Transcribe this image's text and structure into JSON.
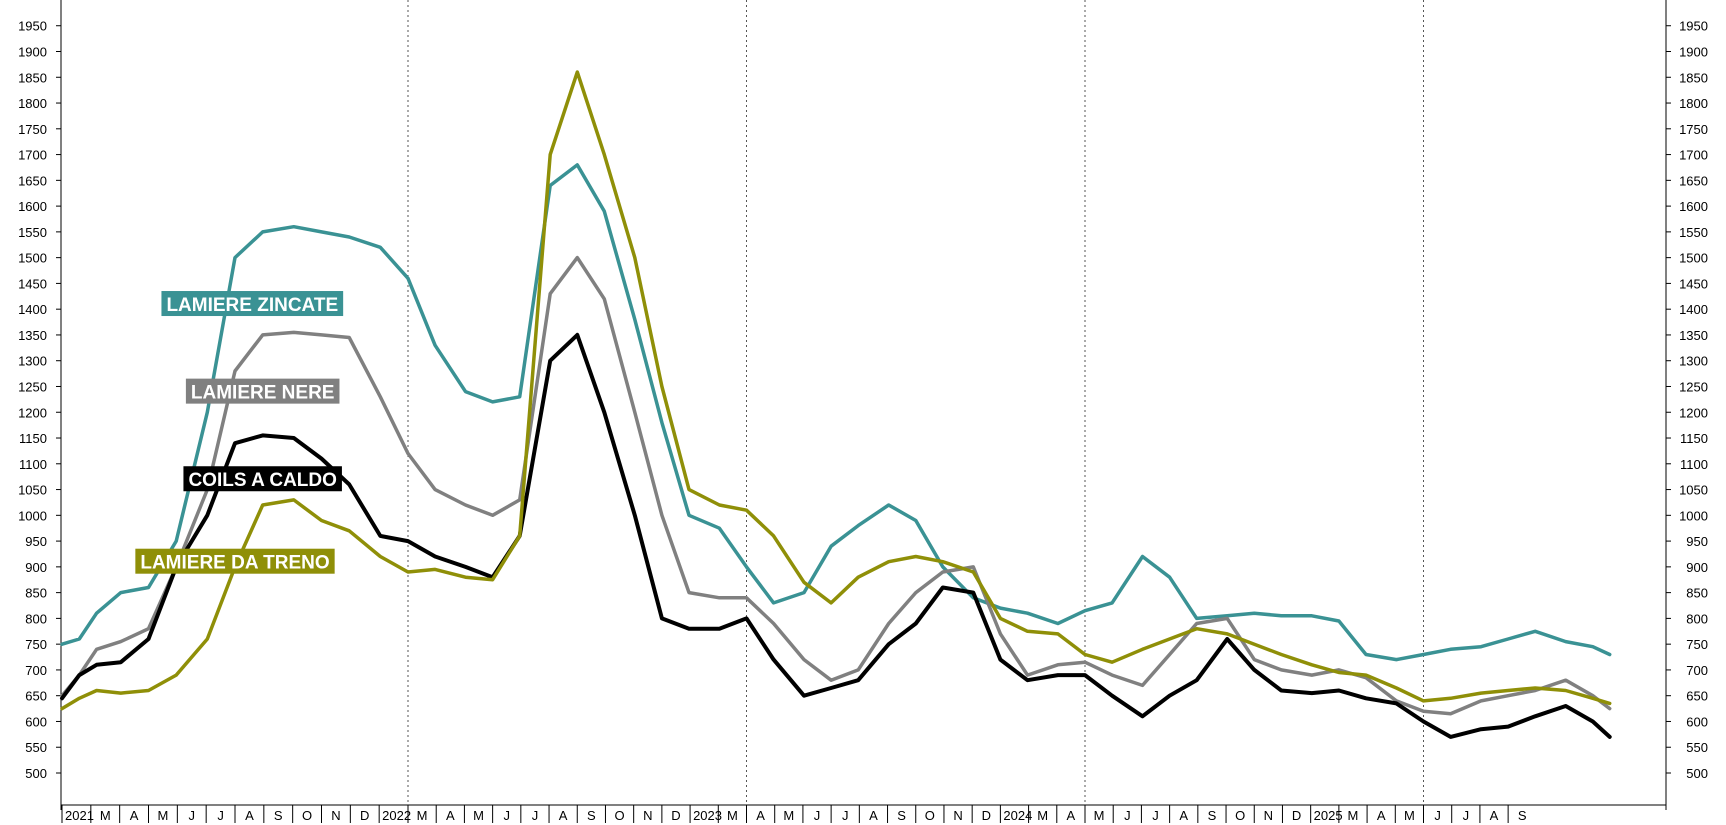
{
  "chart_data": {
    "type": "line",
    "ylim": [
      450,
      1980
    ],
    "yticks": [
      500,
      550,
      600,
      650,
      700,
      750,
      800,
      850,
      900,
      950,
      1000,
      1050,
      1100,
      1150,
      1200,
      1250,
      1300,
      1350,
      1400,
      1450,
      1500,
      1550,
      1600,
      1650,
      1700,
      1750,
      1800,
      1850,
      1900,
      1950
    ],
    "ytick_labels": [
      "500",
      "550",
      "600",
      "650",
      "700",
      "750",
      "800",
      "850",
      "900",
      "950",
      "1000",
      "1050",
      "1100",
      "1150",
      "1200",
      "1250",
      "1300",
      "1350",
      "1400",
      "1450",
      "1500",
      "1550",
      "1600",
      "1650",
      "1700",
      "1750",
      "1800",
      "1850",
      "1900",
      "1950"
    ],
    "grid": "vertical dotted lines at year starts",
    "x_axis": {
      "start": "2021-01",
      "end": "2025-09",
      "months": [
        "2021",
        "M",
        "A",
        "M",
        "J",
        "J",
        "A",
        "S",
        "O",
        "N",
        "D",
        "2022",
        "M",
        "A",
        "M",
        "J",
        "J",
        "A",
        "S",
        "O",
        "N",
        "D",
        "2023",
        "M",
        "A",
        "M",
        "J",
        "J",
        "A",
        "S",
        "O",
        "N",
        "D",
        "2024",
        "M",
        "A",
        "M",
        "J",
        "J",
        "A",
        "S",
        "O",
        "N",
        "D",
        "2025",
        "M",
        "A",
        "M",
        "J",
        "J",
        "A",
        "S"
      ]
    },
    "series": [
      {
        "name": "LAMIERE ZINCATE",
        "color": "#3a9294",
        "label_anchor": [
          2021.55,
          1410
        ],
        "points": [
          [
            2021.0,
            750
          ],
          [
            2021.05,
            760
          ],
          [
            2021.1,
            810
          ],
          [
            2021.17,
            850
          ],
          [
            2021.25,
            860
          ],
          [
            2021.33,
            950
          ],
          [
            2021.42,
            1200
          ],
          [
            2021.5,
            1500
          ],
          [
            2021.58,
            1550
          ],
          [
            2021.67,
            1560
          ],
          [
            2021.75,
            1550
          ],
          [
            2021.83,
            1540
          ],
          [
            2021.92,
            1520
          ],
          [
            2022.0,
            1460
          ],
          [
            2022.08,
            1330
          ],
          [
            2022.17,
            1240
          ],
          [
            2022.25,
            1220
          ],
          [
            2022.33,
            1230
          ],
          [
            2022.42,
            1640
          ],
          [
            2022.5,
            1680
          ],
          [
            2022.58,
            1590
          ],
          [
            2022.67,
            1380
          ],
          [
            2022.75,
            1180
          ],
          [
            2022.83,
            1000
          ],
          [
            2022.92,
            975
          ],
          [
            2023.0,
            900
          ],
          [
            2023.08,
            830
          ],
          [
            2023.17,
            850
          ],
          [
            2023.25,
            940
          ],
          [
            2023.33,
            980
          ],
          [
            2023.42,
            1020
          ],
          [
            2023.5,
            990
          ],
          [
            2023.58,
            900
          ],
          [
            2023.67,
            840
          ],
          [
            2023.75,
            820
          ],
          [
            2023.83,
            810
          ],
          [
            2023.92,
            790
          ],
          [
            2024.0,
            815
          ],
          [
            2024.08,
            830
          ],
          [
            2024.17,
            920
          ],
          [
            2024.25,
            880
          ],
          [
            2024.33,
            800
          ],
          [
            2024.42,
            805
          ],
          [
            2024.5,
            810
          ],
          [
            2024.58,
            805
          ],
          [
            2024.67,
            805
          ],
          [
            2024.75,
            795
          ],
          [
            2024.83,
            730
          ],
          [
            2024.92,
            720
          ],
          [
            2025.0,
            730
          ],
          [
            2025.08,
            740
          ],
          [
            2025.17,
            745
          ],
          [
            2025.25,
            760
          ],
          [
            2025.33,
            775
          ],
          [
            2025.42,
            755
          ],
          [
            2025.5,
            745
          ],
          [
            2025.55,
            730
          ]
        ]
      },
      {
        "name": "LAMIERE NERE",
        "color": "#808080",
        "label_anchor": [
          2021.58,
          1240
        ],
        "points": [
          [
            2021.0,
            650
          ],
          [
            2021.05,
            690
          ],
          [
            2021.1,
            740
          ],
          [
            2021.17,
            755
          ],
          [
            2021.25,
            780
          ],
          [
            2021.33,
            900
          ],
          [
            2021.42,
            1050
          ],
          [
            2021.5,
            1280
          ],
          [
            2021.58,
            1350
          ],
          [
            2021.67,
            1355
          ],
          [
            2021.75,
            1350
          ],
          [
            2021.83,
            1345
          ],
          [
            2021.92,
            1230
          ],
          [
            2022.0,
            1120
          ],
          [
            2022.08,
            1050
          ],
          [
            2022.17,
            1020
          ],
          [
            2022.25,
            1000
          ],
          [
            2022.33,
            1030
          ],
          [
            2022.42,
            1430
          ],
          [
            2022.5,
            1500
          ],
          [
            2022.58,
            1420
          ],
          [
            2022.67,
            1200
          ],
          [
            2022.75,
            1000
          ],
          [
            2022.83,
            850
          ],
          [
            2022.92,
            840
          ],
          [
            2023.0,
            840
          ],
          [
            2023.08,
            790
          ],
          [
            2023.17,
            720
          ],
          [
            2023.25,
            680
          ],
          [
            2023.33,
            700
          ],
          [
            2023.42,
            790
          ],
          [
            2023.5,
            850
          ],
          [
            2023.58,
            890
          ],
          [
            2023.67,
            900
          ],
          [
            2023.75,
            770
          ],
          [
            2023.83,
            690
          ],
          [
            2023.92,
            710
          ],
          [
            2024.0,
            715
          ],
          [
            2024.08,
            690
          ],
          [
            2024.17,
            670
          ],
          [
            2024.25,
            730
          ],
          [
            2024.33,
            790
          ],
          [
            2024.42,
            800
          ],
          [
            2024.5,
            720
          ],
          [
            2024.58,
            700
          ],
          [
            2024.67,
            690
          ],
          [
            2024.75,
            700
          ],
          [
            2024.83,
            685
          ],
          [
            2024.92,
            640
          ],
          [
            2025.0,
            620
          ],
          [
            2025.08,
            615
          ],
          [
            2025.17,
            640
          ],
          [
            2025.25,
            650
          ],
          [
            2025.33,
            660
          ],
          [
            2025.42,
            680
          ],
          [
            2025.5,
            650
          ],
          [
            2025.55,
            625
          ]
        ]
      },
      {
        "name": "COILS A CALDO",
        "color": "#000000",
        "label_anchor": [
          2021.58,
          1070
        ],
        "points": [
          [
            2021.0,
            645
          ],
          [
            2021.05,
            690
          ],
          [
            2021.1,
            710
          ],
          [
            2021.17,
            715
          ],
          [
            2021.25,
            760
          ],
          [
            2021.33,
            900
          ],
          [
            2021.42,
            1000
          ],
          [
            2021.5,
            1140
          ],
          [
            2021.58,
            1155
          ],
          [
            2021.67,
            1150
          ],
          [
            2021.75,
            1110
          ],
          [
            2021.83,
            1060
          ],
          [
            2021.92,
            960
          ],
          [
            2022.0,
            950
          ],
          [
            2022.08,
            920
          ],
          [
            2022.17,
            900
          ],
          [
            2022.25,
            880
          ],
          [
            2022.33,
            960
          ],
          [
            2022.42,
            1300
          ],
          [
            2022.5,
            1350
          ],
          [
            2022.58,
            1200
          ],
          [
            2022.67,
            1000
          ],
          [
            2022.75,
            800
          ],
          [
            2022.83,
            780
          ],
          [
            2022.92,
            780
          ],
          [
            2023.0,
            800
          ],
          [
            2023.08,
            720
          ],
          [
            2023.17,
            650
          ],
          [
            2023.25,
            665
          ],
          [
            2023.33,
            680
          ],
          [
            2023.42,
            750
          ],
          [
            2023.5,
            790
          ],
          [
            2023.58,
            860
          ],
          [
            2023.67,
            850
          ],
          [
            2023.75,
            720
          ],
          [
            2023.83,
            680
          ],
          [
            2023.92,
            690
          ],
          [
            2024.0,
            690
          ],
          [
            2024.08,
            650
          ],
          [
            2024.17,
            610
          ],
          [
            2024.25,
            650
          ],
          [
            2024.33,
            680
          ],
          [
            2024.42,
            760
          ],
          [
            2024.5,
            700
          ],
          [
            2024.58,
            660
          ],
          [
            2024.67,
            655
          ],
          [
            2024.75,
            660
          ],
          [
            2024.83,
            645
          ],
          [
            2024.92,
            635
          ],
          [
            2025.0,
            600
          ],
          [
            2025.08,
            570
          ],
          [
            2025.17,
            585
          ],
          [
            2025.25,
            590
          ],
          [
            2025.33,
            610
          ],
          [
            2025.42,
            630
          ],
          [
            2025.5,
            600
          ],
          [
            2025.55,
            570
          ]
        ]
      },
      {
        "name": "LAMIERE DA TRENO",
        "color": "#8f8f08",
        "label_anchor": [
          2021.5,
          910
        ],
        "points": [
          [
            2021.0,
            625
          ],
          [
            2021.05,
            645
          ],
          [
            2021.1,
            660
          ],
          [
            2021.17,
            655
          ],
          [
            2021.25,
            660
          ],
          [
            2021.33,
            690
          ],
          [
            2021.42,
            760
          ],
          [
            2021.5,
            900
          ],
          [
            2021.58,
            1020
          ],
          [
            2021.67,
            1030
          ],
          [
            2021.75,
            990
          ],
          [
            2021.83,
            970
          ],
          [
            2021.92,
            920
          ],
          [
            2022.0,
            890
          ],
          [
            2022.08,
            895
          ],
          [
            2022.17,
            880
          ],
          [
            2022.25,
            875
          ],
          [
            2022.33,
            960
          ],
          [
            2022.42,
            1700
          ],
          [
            2022.5,
            1860
          ],
          [
            2022.58,
            1700
          ],
          [
            2022.67,
            1500
          ],
          [
            2022.75,
            1250
          ],
          [
            2022.83,
            1050
          ],
          [
            2022.92,
            1020
          ],
          [
            2023.0,
            1010
          ],
          [
            2023.08,
            960
          ],
          [
            2023.17,
            870
          ],
          [
            2023.25,
            830
          ],
          [
            2023.33,
            880
          ],
          [
            2023.42,
            910
          ],
          [
            2023.5,
            920
          ],
          [
            2023.58,
            910
          ],
          [
            2023.67,
            890
          ],
          [
            2023.75,
            800
          ],
          [
            2023.83,
            775
          ],
          [
            2023.92,
            770
          ],
          [
            2024.0,
            730
          ],
          [
            2024.08,
            715
          ],
          [
            2024.17,
            740
          ],
          [
            2024.25,
            760
          ],
          [
            2024.33,
            780
          ],
          [
            2024.42,
            770
          ],
          [
            2024.5,
            750
          ],
          [
            2024.58,
            730
          ],
          [
            2024.67,
            710
          ],
          [
            2024.75,
            695
          ],
          [
            2024.83,
            690
          ],
          [
            2024.92,
            665
          ],
          [
            2025.0,
            640
          ],
          [
            2025.08,
            645
          ],
          [
            2025.17,
            655
          ],
          [
            2025.25,
            660
          ],
          [
            2025.33,
            665
          ],
          [
            2025.42,
            660
          ],
          [
            2025.5,
            645
          ],
          [
            2025.55,
            635
          ]
        ]
      }
    ]
  }
}
